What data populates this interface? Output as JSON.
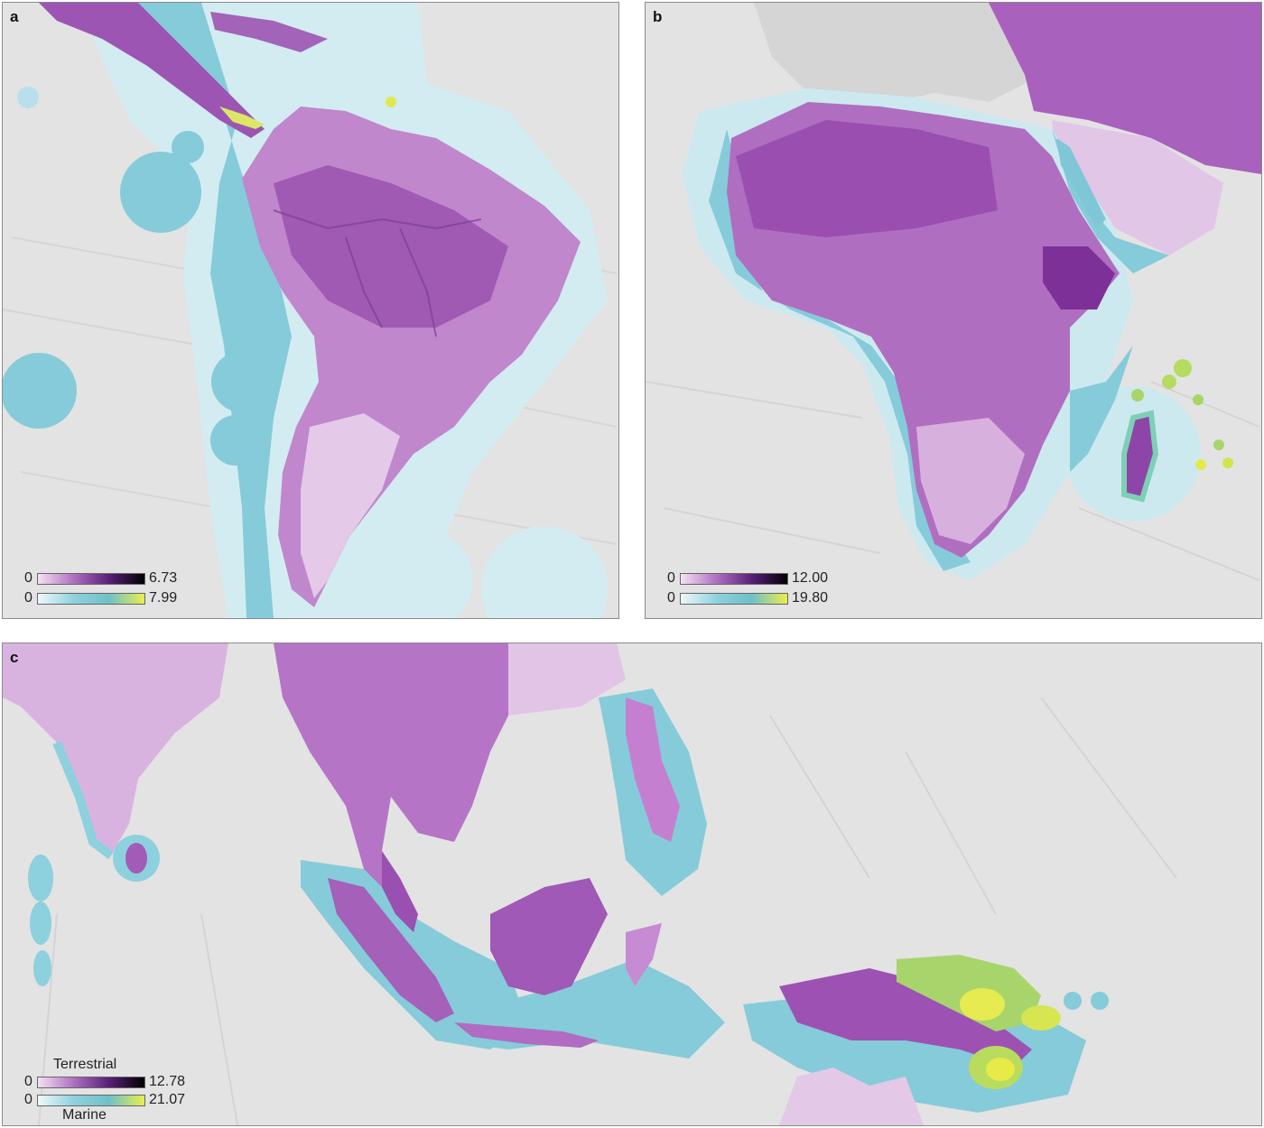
{
  "colors": {
    "ocean": "#e4e4e4",
    "land": "#d9d9d9",
    "terrestrial_low": "#f0dcef",
    "terrestrial_mid": "#b06ec0",
    "terrestrial_high": "#7a2d94",
    "marine_low": "#d6eef3",
    "marine_mid": "#7fc9d8",
    "marine_high": "#e9ea46",
    "marine_green": "#a9d46a"
  },
  "panels": [
    {
      "label": "a",
      "legend": {
        "terrestrial": {
          "min": "0",
          "max": "6.73"
        },
        "marine": {
          "min": "0",
          "max": "7.99"
        }
      }
    },
    {
      "label": "b",
      "legend": {
        "terrestrial": {
          "min": "0",
          "max": "12.00"
        },
        "marine": {
          "min": "0",
          "max": "19.80"
        }
      }
    },
    {
      "label": "c",
      "legend": {
        "terrestrial_title": "Terrestrial",
        "marine_title": "Marine",
        "terrestrial": {
          "min": "0",
          "max": "12.78"
        },
        "marine": {
          "min": "0",
          "max": "21.07"
        }
      }
    }
  ]
}
